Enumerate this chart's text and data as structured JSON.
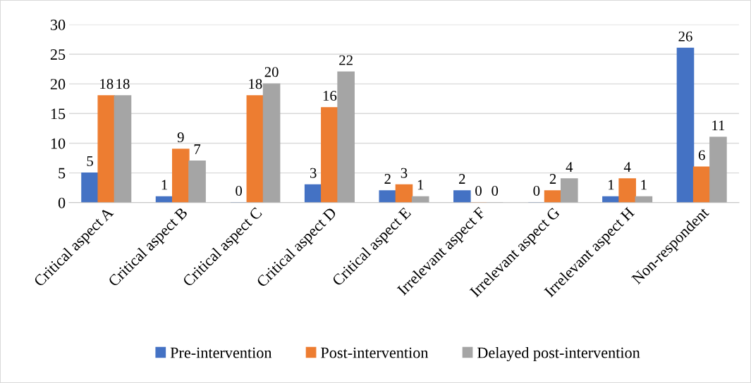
{
  "chart_data": {
    "type": "bar",
    "categories": [
      "Critical aspect A",
      "Critical aspect B",
      "Critical aspect C",
      "Critical aspect D",
      "Critical aspect E",
      "Irrelevant aspect F",
      "Irrelevant aspect G",
      "Irrelevant aspect H",
      "Non-respondent"
    ],
    "series": [
      {
        "name": "Pre-intervention",
        "color": "#4472c4",
        "values": [
          5,
          1,
          0,
          3,
          2,
          2,
          0,
          1,
          26
        ]
      },
      {
        "name": "Post-intervention",
        "color": "#ed7d31",
        "values": [
          18,
          9,
          18,
          16,
          3,
          0,
          2,
          4,
          6
        ]
      },
      {
        "name": "Delayed post-intervention",
        "color": "#a5a5a5",
        "values": [
          18,
          7,
          20,
          22,
          1,
          0,
          4,
          1,
          11
        ]
      }
    ],
    "ylim": [
      0,
      30
    ],
    "yticks": [
      0,
      5,
      10,
      15,
      20,
      25,
      30
    ],
    "grid": "y",
    "legend": "bottom",
    "data_labels": true
  }
}
